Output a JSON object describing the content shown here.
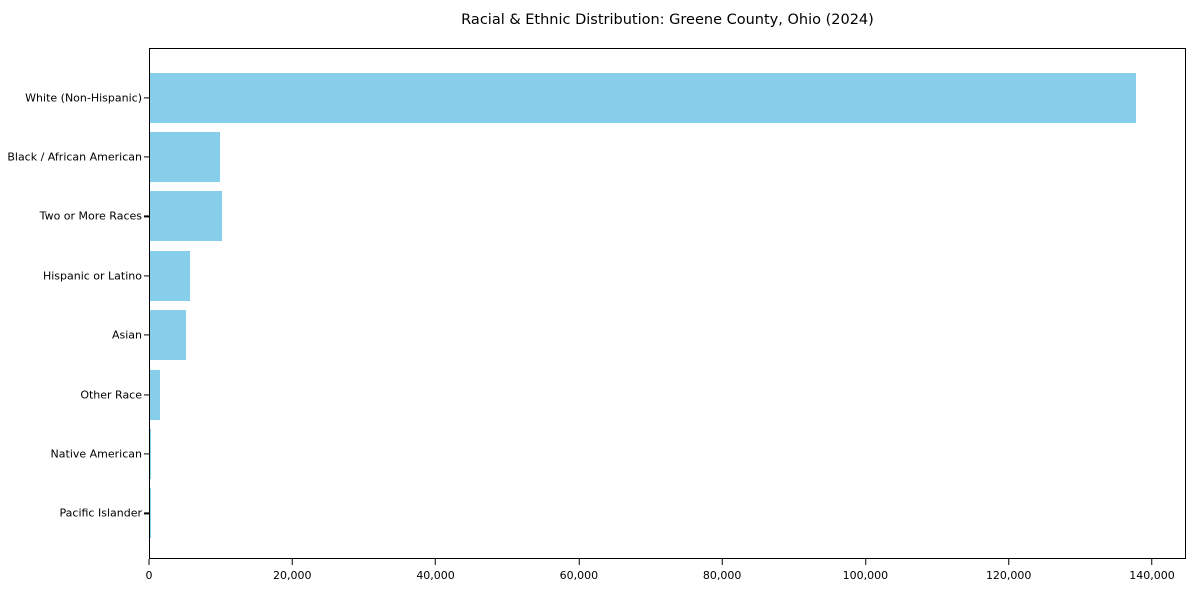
{
  "chart_data": {
    "type": "bar",
    "orientation": "horizontal",
    "title": "Racial & Ethnic Distribution: Greene County, Ohio (2024)",
    "categories": [
      "White (Non-Hispanic)",
      "Black / African American",
      "Two or More Races",
      "Hispanic or Latino",
      "Asian",
      "Other Race",
      "Native American",
      "Pacific Islander"
    ],
    "values": [
      137900,
      9800,
      10050,
      5600,
      5000,
      1400,
      100,
      50
    ],
    "xlabel": "",
    "ylabel": "",
    "xlim": [
      0,
      144750
    ],
    "xticks": [
      0,
      20000,
      40000,
      60000,
      80000,
      100000,
      120000,
      140000
    ],
    "xtick_labels": [
      "0",
      "20,000",
      "40,000",
      "60,000",
      "80,000",
      "100,000",
      "120,000",
      "140,000"
    ],
    "bar_color": "#87CEEB",
    "axis_color": "#000000",
    "background_color": "#ffffff",
    "grid": false,
    "legend": "none"
  }
}
